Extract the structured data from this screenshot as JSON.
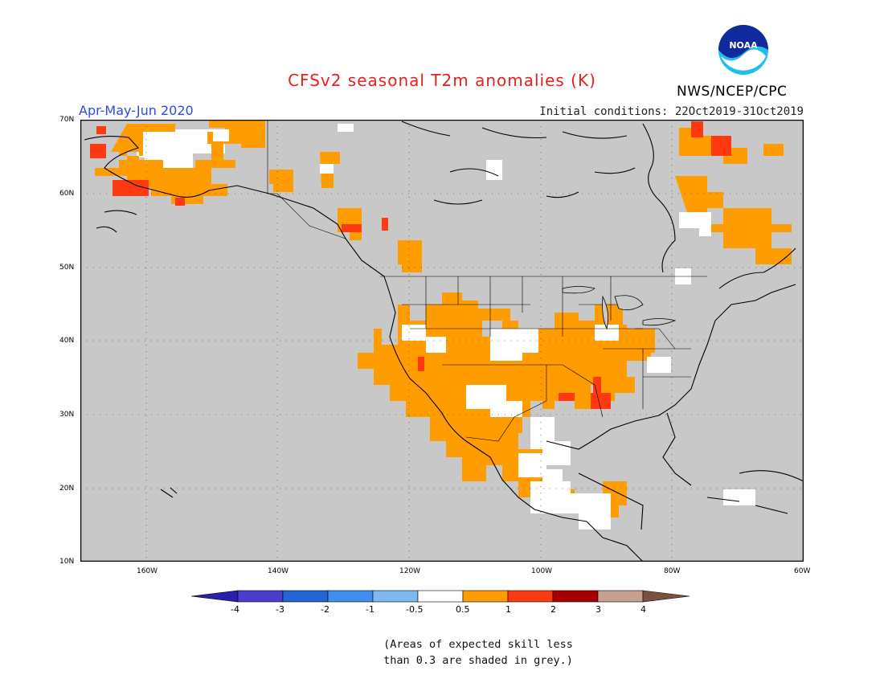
{
  "header": {
    "title": "CFSv2 seasonal T2m anomalies (K)",
    "agency": "NWS/NCEP/CPC",
    "logo_text": "NOAA",
    "season": "Apr-May-Jun 2020",
    "initial_conditions": "Initial conditions: 22Oct2019-31Oct2019"
  },
  "map": {
    "background_color": "#c8c8c8",
    "lon_range": [
      -170,
      -60
    ],
    "lat_range": [
      10,
      70
    ],
    "lat_labels": [
      "70N",
      "60N",
      "50N",
      "40N",
      "30N",
      "20N",
      "10N"
    ],
    "lon_labels": [
      "160W",
      "140W",
      "120W",
      "100W",
      "80W",
      "60W"
    ],
    "grid": "dotted"
  },
  "colorbar": {
    "labels": [
      "-4",
      "-3",
      "-2",
      "-1",
      "-0.5",
      "0.5",
      "1",
      "2",
      "3",
      "4"
    ],
    "colors": [
      "#2a1fa8",
      "#4a3ed0",
      "#2166d6",
      "#3f8eee",
      "#7db8f2",
      "#ffffff",
      "#ff9d00",
      "#ff3a10",
      "#a80000",
      "#c8a090",
      "#7a5040"
    ]
  },
  "footnote": {
    "line1": "(Areas of expected skill less",
    "line2": "than 0.3 are shaded in grey.)"
  }
}
